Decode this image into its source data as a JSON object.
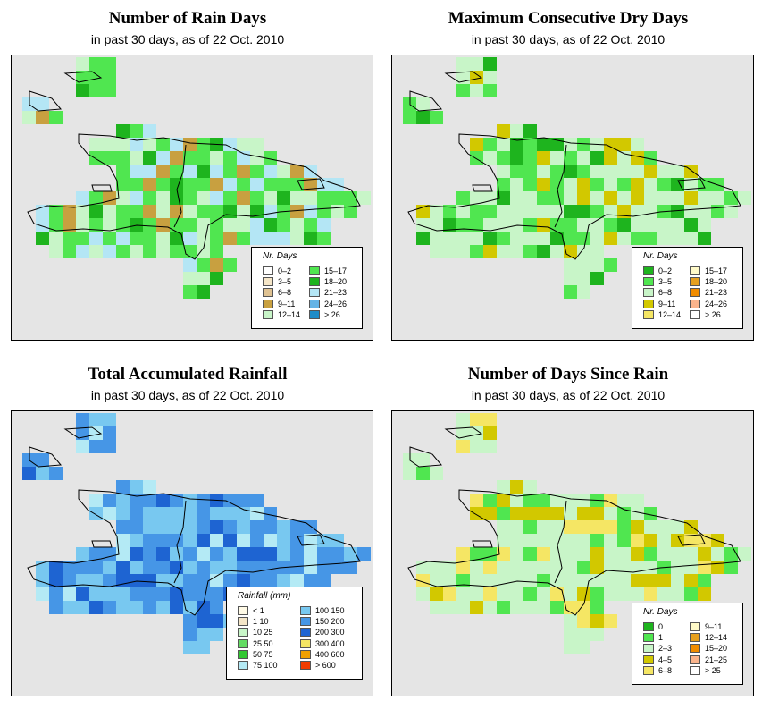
{
  "panels": [
    {
      "title": "Number of Rain Days",
      "subtitle": "in past 30 days, as of  22 Oct. 2010",
      "scheme": "raindays",
      "legend": {
        "title": "Nr. Days",
        "items": [
          {
            "label": "0–2",
            "color": "#ffffff"
          },
          {
            "label": "3–5",
            "color": "#f5e6c8"
          },
          {
            "label": "6–8",
            "color": "#dfc292"
          },
          {
            "label": "9–11",
            "color": "#c8a040"
          },
          {
            "label": "12–14",
            "color": "#c8f5c8"
          },
          {
            "label": "15–17",
            "color": "#50e650"
          },
          {
            "label": "18–20",
            "color": "#1eb41e"
          },
          {
            "label": "21–23",
            "color": "#b4e6f5"
          },
          {
            "label": "24–26",
            "color": "#64b4e6"
          },
          {
            "label": "> 26",
            "color": "#1e8cc8"
          }
        ]
      }
    },
    {
      "title": "Maximum Consecutive Dry Days",
      "subtitle": "in past 30 days, as of  22 Oct. 2010",
      "scheme": "drydays",
      "legend": {
        "title": "Nr. Days",
        "items": [
          {
            "label": "0–2",
            "color": "#1eb41e"
          },
          {
            "label": "3–5",
            "color": "#50e650"
          },
          {
            "label": "6–8",
            "color": "#c8f5c8"
          },
          {
            "label": "9–11",
            "color": "#d2c800"
          },
          {
            "label": "12–14",
            "color": "#f5e664"
          },
          {
            "label": "15–17",
            "color": "#fffac8"
          },
          {
            "label": "18–20",
            "color": "#e6a01e"
          },
          {
            "label": "21–23",
            "color": "#f08c00"
          },
          {
            "label": "24–26",
            "color": "#fab48c"
          },
          {
            "label": "> 26",
            "color": "#ffffff"
          }
        ]
      }
    },
    {
      "title": "Total Accumulated Rainfall",
      "subtitle": "in past 30 days, as of  22 Oct. 2010",
      "scheme": "rainfall",
      "legend": {
        "title": "Rainfall (mm)",
        "items": [
          {
            "label": "< 1",
            "color": "#fffae6"
          },
          {
            "label": "1    10",
            "color": "#f5e6c8"
          },
          {
            "label": "10    25",
            "color": "#c8f5c8"
          },
          {
            "label": "25    50",
            "color": "#64dc64"
          },
          {
            "label": "50    75",
            "color": "#32c832"
          },
          {
            "label": "75   100",
            "color": "#b4eaf5"
          },
          {
            "label": "100   150",
            "color": "#78c8f0"
          },
          {
            "label": "150   200",
            "color": "#4696e6"
          },
          {
            "label": "200   300",
            "color": "#1e64d2"
          },
          {
            "label": "300   400",
            "color": "#f5e664"
          },
          {
            "label": "400   600",
            "color": "#f0a000"
          },
          {
            "label": "> 600",
            "color": "#f03c00"
          }
        ]
      }
    },
    {
      "title": "Number of Days Since Rain",
      "subtitle": "in past 30 days, as of  22 Oct. 2010",
      "scheme": "since",
      "legend": {
        "title": "Nr. Days",
        "items": [
          {
            "label": "0",
            "color": "#1eb41e"
          },
          {
            "label": "1",
            "color": "#50e650"
          },
          {
            "label": "2–3",
            "color": "#c8f5c8"
          },
          {
            "label": "4–5",
            "color": "#d2c800"
          },
          {
            "label": "6–8",
            "color": "#f5e664"
          },
          {
            "label": "9–11",
            "color": "#fffac8"
          },
          {
            "label": "12–14",
            "color": "#e6a01e"
          },
          {
            "label": "15–20",
            "color": "#f08c00"
          },
          {
            "label": "21–25",
            "color": "#fab48c"
          },
          {
            "label": "> 25",
            "color": "#ffffff"
          }
        ]
      }
    }
  ]
}
